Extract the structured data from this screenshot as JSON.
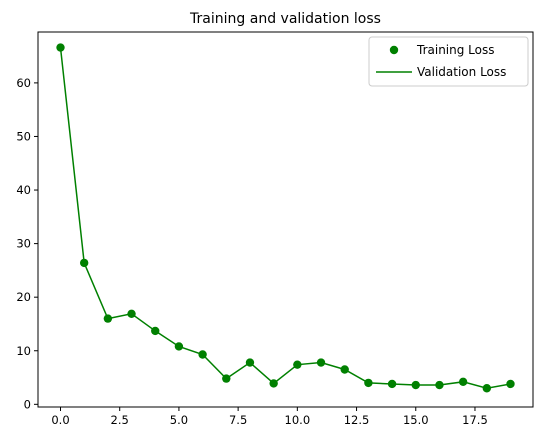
{
  "chart_data": {
    "type": "line",
    "title": "Training and validation loss",
    "xlabel": "",
    "ylabel": "",
    "xlim": [
      -0.95,
      19.95
    ],
    "ylim": [
      -0.5,
      69.5
    ],
    "x_ticks": [
      0.0,
      2.5,
      5.0,
      7.5,
      10.0,
      12.5,
      15.0,
      17.5
    ],
    "x_tick_labels": [
      "0.0",
      "2.5",
      "5.0",
      "7.5",
      "10.0",
      "12.5",
      "15.0",
      "17.5"
    ],
    "y_ticks": [
      0,
      10,
      20,
      30,
      40,
      50,
      60
    ],
    "y_tick_labels": [
      "0",
      "10",
      "20",
      "30",
      "40",
      "50",
      "60"
    ],
    "grid": false,
    "legend_position": "upper right",
    "series": [
      {
        "name": "Training Loss",
        "style": "markers",
        "color": "#008000",
        "x": [
          0,
          1,
          2,
          3,
          4,
          5,
          6,
          7,
          8,
          9,
          10,
          11,
          12,
          13,
          14,
          15,
          16,
          17,
          18,
          19
        ],
        "values": [
          66.6,
          26.4,
          16.0,
          16.9,
          13.7,
          10.8,
          9.3,
          4.8,
          7.8,
          3.9,
          7.4,
          7.8,
          6.5,
          4.0,
          3.8,
          3.6,
          3.6,
          4.2,
          3.0,
          3.8
        ]
      },
      {
        "name": "Validation Loss",
        "style": "line",
        "color": "#008000",
        "x": [
          0,
          1,
          2,
          3,
          4,
          5,
          6,
          7,
          8,
          9,
          10,
          11,
          12,
          13,
          14,
          15,
          16,
          17,
          18,
          19
        ],
        "values": [
          66.6,
          26.4,
          16.0,
          16.9,
          13.7,
          10.8,
          9.3,
          4.8,
          7.8,
          3.9,
          7.4,
          7.8,
          6.5,
          4.0,
          3.8,
          3.6,
          3.6,
          4.2,
          3.0,
          3.8
        ]
      }
    ]
  }
}
